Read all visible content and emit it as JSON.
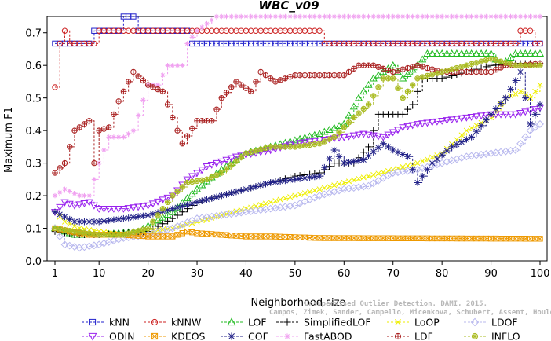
{
  "chart_data": {
    "type": "line",
    "title": "WBC_v09",
    "xlabel": "Neighborhood size",
    "ylabel": "Maximum F1",
    "xlim": [
      1,
      100
    ],
    "ylim": [
      0,
      0.75
    ],
    "x_ticks": [
      1,
      10,
      20,
      30,
      40,
      50,
      60,
      70,
      80,
      90,
      100
    ],
    "y_ticks": [
      0.0,
      0.1,
      0.2,
      0.3,
      0.4,
      0.5,
      0.6,
      0.7
    ],
    "grid": false,
    "legend_position": "bottom",
    "watermark": [
      "Unsupervised Outlier Detection. DAMI, 2015.",
      "Campos, Zimek, Sander, Campello, Micenkova, Schubert, Assent, Houle"
    ],
    "series": [
      {
        "name": "kNN",
        "color": "#2222cc",
        "marker": "square",
        "key_points": [
          [
            1,
            0.667
          ],
          [
            8,
            0.667
          ],
          [
            9,
            0.706
          ],
          [
            14,
            0.706
          ],
          [
            15,
            0.75
          ],
          [
            17,
            0.75
          ],
          [
            18,
            0.706
          ],
          [
            28,
            0.706
          ],
          [
            29,
            0.667
          ],
          [
            100,
            0.667
          ]
        ]
      },
      {
        "name": "kNNW",
        "color": "#cc2222",
        "marker": "circle",
        "key_points": [
          [
            1,
            0.533
          ],
          [
            2,
            0.667
          ],
          [
            3,
            0.706
          ],
          [
            4,
            0.667
          ],
          [
            9,
            0.667
          ],
          [
            10,
            0.706
          ],
          [
            55,
            0.706
          ],
          [
            56,
            0.667
          ],
          [
            95,
            0.667
          ],
          [
            96,
            0.706
          ],
          [
            98,
            0.706
          ],
          [
            99,
            0.667
          ],
          [
            100,
            0.667
          ]
        ]
      },
      {
        "name": "LOF",
        "color": "#22bb22",
        "marker": "triangle-up",
        "key_points": [
          [
            1,
            0.1
          ],
          [
            5,
            0.08
          ],
          [
            10,
            0.08
          ],
          [
            18,
            0.09
          ],
          [
            25,
            0.15
          ],
          [
            30,
            0.22
          ],
          [
            35,
            0.28
          ],
          [
            40,
            0.33
          ],
          [
            45,
            0.35
          ],
          [
            50,
            0.37
          ],
          [
            55,
            0.39
          ],
          [
            60,
            0.42
          ],
          [
            63,
            0.5
          ],
          [
            66,
            0.56
          ],
          [
            70,
            0.6
          ],
          [
            72,
            0.56
          ],
          [
            75,
            0.6
          ],
          [
            77,
            0.636
          ],
          [
            85,
            0.636
          ],
          [
            90,
            0.636
          ],
          [
            92,
            0.6
          ],
          [
            95,
            0.636
          ],
          [
            100,
            0.636
          ]
        ]
      },
      {
        "name": "SimplifiedLOF",
        "color": "#000000",
        "marker": "plus",
        "key_points": [
          [
            1,
            0.09
          ],
          [
            5,
            0.08
          ],
          [
            10,
            0.08
          ],
          [
            20,
            0.09
          ],
          [
            25,
            0.13
          ],
          [
            30,
            0.18
          ],
          [
            35,
            0.2
          ],
          [
            40,
            0.22
          ],
          [
            45,
            0.24
          ],
          [
            50,
            0.26
          ],
          [
            55,
            0.27
          ],
          [
            58,
            0.3
          ],
          [
            62,
            0.3
          ],
          [
            65,
            0.35
          ],
          [
            67,
            0.45
          ],
          [
            72,
            0.45
          ],
          [
            74,
            0.48
          ],
          [
            76,
            0.56
          ],
          [
            80,
            0.56
          ],
          [
            85,
            0.58
          ],
          [
            90,
            0.6
          ],
          [
            95,
            0.606
          ],
          [
            100,
            0.606
          ]
        ]
      },
      {
        "name": "LoOP",
        "color": "#eeee00",
        "marker": "x",
        "key_points": [
          [
            1,
            0.15
          ],
          [
            3,
            0.12
          ],
          [
            6,
            0.1
          ],
          [
            10,
            0.09
          ],
          [
            15,
            0.08
          ],
          [
            20,
            0.09
          ],
          [
            25,
            0.1
          ],
          [
            30,
            0.12
          ],
          [
            35,
            0.14
          ],
          [
            40,
            0.16
          ],
          [
            45,
            0.18
          ],
          [
            50,
            0.2
          ],
          [
            55,
            0.22
          ],
          [
            60,
            0.24
          ],
          [
            65,
            0.26
          ],
          [
            70,
            0.28
          ],
          [
            75,
            0.3
          ],
          [
            80,
            0.33
          ],
          [
            85,
            0.4
          ],
          [
            90,
            0.44
          ],
          [
            93,
            0.5
          ],
          [
            96,
            0.52
          ],
          [
            98,
            0.5
          ],
          [
            100,
            0.54
          ]
        ]
      },
      {
        "name": "LDOF",
        "color": "#b8b8ee",
        "marker": "diamond",
        "key_points": [
          [
            1,
            0.1
          ],
          [
            3,
            0.05
          ],
          [
            6,
            0.04
          ],
          [
            10,
            0.05
          ],
          [
            15,
            0.07
          ],
          [
            20,
            0.08
          ],
          [
            25,
            0.1
          ],
          [
            30,
            0.13
          ],
          [
            35,
            0.14
          ],
          [
            40,
            0.15
          ],
          [
            45,
            0.16
          ],
          [
            50,
            0.17
          ],
          [
            55,
            0.2
          ],
          [
            60,
            0.22
          ],
          [
            65,
            0.23
          ],
          [
            70,
            0.27
          ],
          [
            75,
            0.28
          ],
          [
            80,
            0.3
          ],
          [
            85,
            0.32
          ],
          [
            90,
            0.33
          ],
          [
            95,
            0.34
          ],
          [
            98,
            0.4
          ],
          [
            100,
            0.42
          ]
        ]
      },
      {
        "name": "ODIN",
        "color": "#9922ee",
        "marker": "triangle-down",
        "key_points": [
          [
            1,
            0.15
          ],
          [
            3,
            0.18
          ],
          [
            5,
            0.17
          ],
          [
            8,
            0.18
          ],
          [
            10,
            0.16
          ],
          [
            15,
            0.16
          ],
          [
            20,
            0.17
          ],
          [
            25,
            0.2
          ],
          [
            28,
            0.25
          ],
          [
            32,
            0.29
          ],
          [
            38,
            0.32
          ],
          [
            45,
            0.34
          ],
          [
            50,
            0.36
          ],
          [
            55,
            0.37
          ],
          [
            60,
            0.38
          ],
          [
            64,
            0.39
          ],
          [
            68,
            0.38
          ],
          [
            72,
            0.41
          ],
          [
            75,
            0.42
          ],
          [
            80,
            0.43
          ],
          [
            85,
            0.44
          ],
          [
            90,
            0.45
          ],
          [
            95,
            0.45
          ],
          [
            100,
            0.47
          ]
        ]
      },
      {
        "name": "KDEOS",
        "color": "#ee9900",
        "marker": "square-x",
        "key_points": [
          [
            1,
            0.1
          ],
          [
            4,
            0.09
          ],
          [
            8,
            0.08
          ],
          [
            15,
            0.08
          ],
          [
            20,
            0.075
          ],
          [
            25,
            0.075
          ],
          [
            28,
            0.09
          ],
          [
            30,
            0.085
          ],
          [
            35,
            0.08
          ],
          [
            40,
            0.075
          ],
          [
            45,
            0.075
          ],
          [
            55,
            0.07
          ],
          [
            100,
            0.068
          ]
        ]
      },
      {
        "name": "COF",
        "color": "#222288",
        "marker": "asterisk",
        "key_points": [
          [
            1,
            0.15
          ],
          [
            5,
            0.12
          ],
          [
            10,
            0.12
          ],
          [
            15,
            0.13
          ],
          [
            20,
            0.14
          ],
          [
            25,
            0.16
          ],
          [
            30,
            0.18
          ],
          [
            35,
            0.2
          ],
          [
            40,
            0.22
          ],
          [
            45,
            0.24
          ],
          [
            50,
            0.25
          ],
          [
            55,
            0.26
          ],
          [
            58,
            0.34
          ],
          [
            60,
            0.3
          ],
          [
            64,
            0.31
          ],
          [
            68,
            0.36
          ],
          [
            70,
            0.34
          ],
          [
            73,
            0.32
          ],
          [
            75,
            0.24
          ],
          [
            78,
            0.3
          ],
          [
            82,
            0.35
          ],
          [
            86,
            0.38
          ],
          [
            90,
            0.45
          ],
          [
            93,
            0.5
          ],
          [
            96,
            0.58
          ],
          [
            98,
            0.42
          ],
          [
            100,
            0.48
          ]
        ]
      },
      {
        "name": "FastABOD",
        "color": "#f0a0f0",
        "marker": "star",
        "key_points": [
          [
            1,
            0.2
          ],
          [
            3,
            0.22
          ],
          [
            6,
            0.2
          ],
          [
            8,
            0.2
          ],
          [
            10,
            0.3
          ],
          [
            12,
            0.38
          ],
          [
            15,
            0.38
          ],
          [
            17,
            0.4
          ],
          [
            20,
            0.54
          ],
          [
            22,
            0.54
          ],
          [
            24,
            0.6
          ],
          [
            27,
            0.6
          ],
          [
            28,
            0.667
          ],
          [
            30,
            0.706
          ],
          [
            34,
            0.75
          ],
          [
            100,
            0.75
          ]
        ]
      },
      {
        "name": "LDF",
        "color": "#aa2222",
        "marker": "circle-plus",
        "key_points": [
          [
            1,
            0.27
          ],
          [
            3,
            0.3
          ],
          [
            5,
            0.4
          ],
          [
            8,
            0.43
          ],
          [
            9,
            0.3
          ],
          [
            10,
            0.4
          ],
          [
            12,
            0.41
          ],
          [
            14,
            0.49
          ],
          [
            17,
            0.58
          ],
          [
            20,
            0.54
          ],
          [
            23,
            0.52
          ],
          [
            25,
            0.44
          ],
          [
            27,
            0.36
          ],
          [
            30,
            0.43
          ],
          [
            33,
            0.43
          ],
          [
            35,
            0.5
          ],
          [
            38,
            0.55
          ],
          [
            41,
            0.52
          ],
          [
            43,
            0.58
          ],
          [
            46,
            0.55
          ],
          [
            50,
            0.57
          ],
          [
            55,
            0.57
          ],
          [
            60,
            0.57
          ],
          [
            63,
            0.6
          ],
          [
            66,
            0.6
          ],
          [
            70,
            0.58
          ],
          [
            75,
            0.6
          ],
          [
            80,
            0.58
          ],
          [
            85,
            0.58
          ],
          [
            90,
            0.58
          ],
          [
            93,
            0.6
          ],
          [
            96,
            0.6
          ],
          [
            100,
            0.606
          ]
        ]
      },
      {
        "name": "INFLO",
        "color": "#aabb22",
        "marker": "star-circle",
        "key_points": [
          [
            1,
            0.1
          ],
          [
            5,
            0.09
          ],
          [
            10,
            0.08
          ],
          [
            15,
            0.08
          ],
          [
            20,
            0.1
          ],
          [
            25,
            0.2
          ],
          [
            28,
            0.24
          ],
          [
            32,
            0.25
          ],
          [
            35,
            0.27
          ],
          [
            40,
            0.33
          ],
          [
            45,
            0.35
          ],
          [
            50,
            0.35
          ],
          [
            55,
            0.36
          ],
          [
            58,
            0.38
          ],
          [
            62,
            0.44
          ],
          [
            65,
            0.48
          ],
          [
            68,
            0.56
          ],
          [
            70,
            0.56
          ],
          [
            72,
            0.5
          ],
          [
            75,
            0.56
          ],
          [
            80,
            0.58
          ],
          [
            85,
            0.6
          ],
          [
            90,
            0.62
          ],
          [
            95,
            0.6
          ],
          [
            100,
            0.6
          ]
        ]
      }
    ],
    "legend_rows": [
      [
        "kNN",
        "kNNW",
        "LOF",
        "SimplifiedLOF",
        "LoOP",
        "LDOF"
      ],
      [
        "ODIN",
        "KDEOS",
        "COF",
        "FastABOD",
        "LDF",
        "INFLO"
      ]
    ]
  }
}
